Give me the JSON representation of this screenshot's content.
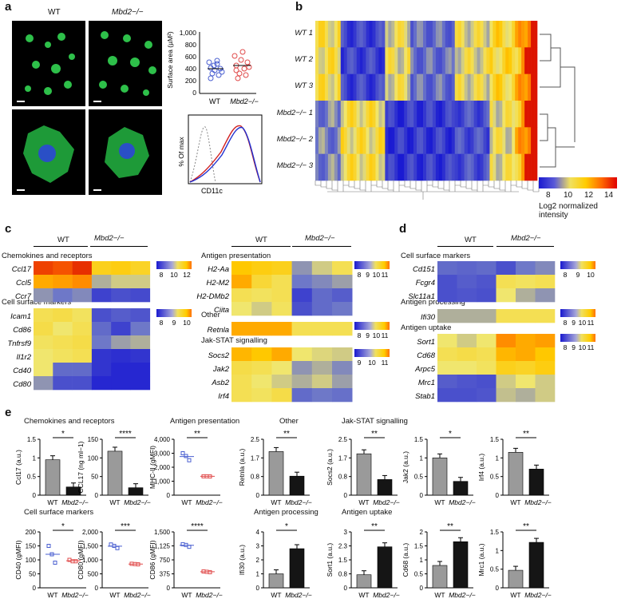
{
  "panels": {
    "a": "a",
    "b": "b",
    "c": "c",
    "d": "d",
    "e": "e"
  },
  "panel_a": {
    "wt": "WT",
    "ko": "Mbd2−/−",
    "sa_ylabel": "Surface area (µM²)",
    "sa_ticks": [
      "1,000",
      "800",
      "600",
      "400",
      "200",
      "0"
    ],
    "sa_x": [
      "WT",
      "Mbd2−/−"
    ],
    "flow_ylabel": "% Of max",
    "flow_xlabel": "CD11c"
  },
  "panel_b": {
    "rows": [
      "WT 1",
      "WT 2",
      "WT 3",
      "Mbd2−/− 1",
      "Mbd2−/− 2",
      "Mbd2−/− 3"
    ],
    "scale": [
      "8",
      "10",
      "12",
      "14"
    ],
    "scale_label": "Log2 normalized intensity"
  },
  "panel_c": {
    "wt": "WT",
    "ko": "Mbd2−/−",
    "blocks": [
      {
        "title": "Chemokines and receptors",
        "genes": [
          "Ccl17",
          "Ccl5",
          "Ccr7"
        ],
        "scale": [
          "8",
          "10",
          "12"
        ]
      },
      {
        "title": "Cell surface markers",
        "genes": [
          "Icam1",
          "Cd86",
          "Tnfrsf9",
          "Il1r2",
          "Cd40",
          "Cd80"
        ],
        "scale": [
          "8",
          "9",
          "10"
        ]
      },
      {
        "title": "Antigen presentation",
        "genes": [
          "H2-Aa",
          "H2-M2",
          "H2-DMb2",
          "Ciita"
        ],
        "scale": [
          "8",
          "9",
          "10",
          "11"
        ]
      },
      {
        "title": "Other",
        "genes": [
          "Retnla"
        ],
        "scale": [
          "8",
          "9",
          "10",
          "11"
        ]
      },
      {
        "title": "Jak-STAT signalling",
        "genes": [
          "Socs2",
          "Jak2",
          "Asb2",
          "Irf4"
        ],
        "scale": [
          "9",
          "10",
          "11"
        ]
      }
    ]
  },
  "panel_d": {
    "wt": "WT",
    "ko": "Mbd2−/−",
    "blocks": [
      {
        "title": "Cell surface markers",
        "genes": [
          "Cd151",
          "Fcgr4",
          "Slc11a1"
        ],
        "scale": [
          "8",
          "9",
          "10"
        ]
      },
      {
        "title": "Antigen processing",
        "genes": [
          "Ifi30"
        ],
        "scale": [
          "8",
          "9",
          "10",
          "11"
        ]
      },
      {
        "title": "Antigen uptake",
        "genes": [
          "Sort1",
          "Cd68",
          "Arpc5",
          "Mrc1",
          "Stab1"
        ],
        "scale": [
          "8",
          "9",
          "10",
          "11"
        ]
      }
    ]
  },
  "panel_e": {
    "sections": [
      "Chemokines and receptors",
      "Antigen presentation",
      "Other",
      "Jak-STAT signalling",
      "Cell surface markers",
      "Antigen processing",
      "Antigen uptake"
    ],
    "x": [
      "WT",
      "Mbd2−/−"
    ]
  },
  "chart_data": [
    {
      "type": "bar",
      "ylabel": "Ccl17 (a.u.)",
      "categories": [
        "WT",
        "Mbd2−/−"
      ],
      "values": [
        0.95,
        0.22
      ],
      "ylim": [
        0,
        1.5
      ],
      "sig": "*"
    },
    {
      "type": "bar",
      "ylabel": "CCL17 (ng ml−1)",
      "categories": [
        "WT",
        "Mbd2−/−"
      ],
      "values": [
        118,
        20
      ],
      "ylim": [
        0,
        150
      ],
      "sig": "****"
    },
    {
      "type": "scatter",
      "ylabel": "MHC-II (gMFI)",
      "categories": [
        "WT",
        "Mbd2−/−"
      ],
      "values": [
        [
          3000,
          2800,
          2500
        ],
        [
          1350,
          1350,
          1340
        ]
      ],
      "ylim": [
        0,
        4000
      ],
      "sig": "**"
    },
    {
      "type": "bar",
      "ylabel": "Retnla (a.u.)",
      "categories": [
        "WT",
        "Mbd2−/−"
      ],
      "values": [
        1.95,
        0.85
      ],
      "ylim": [
        0,
        2.5
      ],
      "sig": "**"
    },
    {
      "type": "bar",
      "ylabel": "Socs2 (a.u.)",
      "categories": [
        "WT",
        "Mbd2−/−"
      ],
      "values": [
        1.85,
        0.7
      ],
      "ylim": [
        0,
        2.5
      ],
      "sig": "**"
    },
    {
      "type": "bar",
      "ylabel": "Jak2 (a.u.)",
      "categories": [
        "WT",
        "Mbd2−/−"
      ],
      "values": [
        1.0,
        0.37
      ],
      "ylim": [
        0,
        1.5
      ],
      "sig": "*"
    },
    {
      "type": "bar",
      "ylabel": "Irf4 (a.u.)",
      "categories": [
        "WT",
        "Mbd2−/−"
      ],
      "values": [
        1.15,
        0.7
      ],
      "ylim": [
        0,
        1.5
      ],
      "sig": "**"
    },
    {
      "type": "scatter",
      "ylabel": "CD40 (gMFI)",
      "categories": [
        "WT",
        "Mbd2−/−"
      ],
      "values": [
        [
          150,
          120,
          90
        ],
        [
          100,
          95,
          95
        ]
      ],
      "ylim": [
        0,
        200
      ],
      "sig": "*"
    },
    {
      "type": "scatter",
      "ylabel": "CD80 (gMFI)",
      "categories": [
        "WT",
        "Mbd2−/−"
      ],
      "values": [
        [
          1550,
          1500,
          1420
        ],
        [
          860,
          850,
          840
        ]
      ],
      "ylim": [
        0,
        2000
      ],
      "sig": "***"
    },
    {
      "type": "scatter",
      "ylabel": "CD86 (gMFI)",
      "categories": [
        "WT",
        "Mbd2−/−"
      ],
      "values": [
        [
          1170,
          1150,
          1100
        ],
        [
          440,
          430,
          420
        ]
      ],
      "ylim": [
        0,
        1500
      ],
      "sig": "****"
    },
    {
      "type": "bar",
      "ylabel": "Ifi30 (a.u.)",
      "categories": [
        "WT",
        "Mbd2−/−"
      ],
      "values": [
        1.0,
        2.8
      ],
      "ylim": [
        0,
        4
      ],
      "sig": "*"
    },
    {
      "type": "bar",
      "ylabel": "Sort1 (a.u.)",
      "categories": [
        "WT",
        "Mbd2−/−"
      ],
      "values": [
        0.7,
        2.2
      ],
      "ylim": [
        0,
        3
      ],
      "sig": "**"
    },
    {
      "type": "bar",
      "ylabel": "Cd68 (a.u.)",
      "categories": [
        "WT",
        "Mbd2−/−"
      ],
      "values": [
        0.8,
        1.65
      ],
      "ylim": [
        0,
        2
      ],
      "sig": "**"
    },
    {
      "type": "bar",
      "ylabel": "Mrc1 (a.u.)",
      "categories": [
        "WT",
        "Mbd2−/−"
      ],
      "values": [
        0.47,
        1.22
      ],
      "ylim": [
        0,
        1.5
      ],
      "sig": "**"
    }
  ]
}
